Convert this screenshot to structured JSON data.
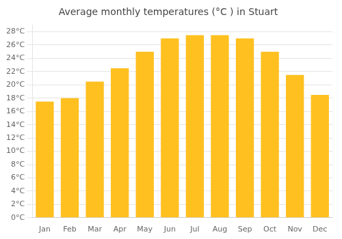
{
  "chart_data": {
    "type": "bar",
    "title": "Average monthly temperatures (°C ) in Stuart",
    "categories": [
      "Jan",
      "Feb",
      "Mar",
      "Apr",
      "May",
      "Jun",
      "Jul",
      "Aug",
      "Sep",
      "Oct",
      "Nov",
      "Dec"
    ],
    "values": [
      17.5,
      18.0,
      20.5,
      22.5,
      25.0,
      27.0,
      27.5,
      27.5,
      27.0,
      25.0,
      21.5,
      18.5
    ],
    "color": "#FFC020",
    "ylim": [
      0,
      29
    ],
    "yticks": [
      {
        "value": 0,
        "label": "0°C"
      },
      {
        "value": 2,
        "label": "2°C"
      },
      {
        "value": 4,
        "label": "4°C"
      },
      {
        "value": 6,
        "label": "6°C"
      },
      {
        "value": 8,
        "label": "8°C"
      },
      {
        "value": 10,
        "label": "10°C"
      },
      {
        "value": 12,
        "label": "12°C"
      },
      {
        "value": 14,
        "label": "14°C"
      },
      {
        "value": 16,
        "label": "16°C"
      },
      {
        "value": 18,
        "label": "18°C"
      },
      {
        "value": 20,
        "label": "20°C"
      },
      {
        "value": 22,
        "label": "22°C"
      },
      {
        "value": 24,
        "label": "24°C"
      },
      {
        "value": 26,
        "label": "26°C"
      },
      {
        "value": 28,
        "label": "28°C"
      }
    ],
    "grid": true
  }
}
